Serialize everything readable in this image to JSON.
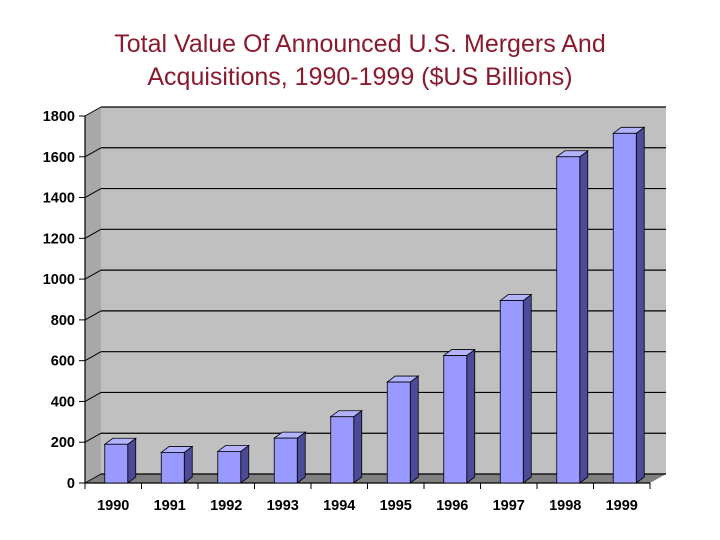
{
  "chart_data": {
    "type": "bar",
    "title_lines": [
      "Total Value Of Announced U.S. Mergers And",
      "Acquisitions, 1990-1999 ($US Billions)"
    ],
    "categories": [
      "1990",
      "1991",
      "1992",
      "1993",
      "1994",
      "1995",
      "1996",
      "1997",
      "1998",
      "1999"
    ],
    "values": [
      190,
      150,
      155,
      220,
      325,
      495,
      625,
      895,
      1600,
      1715
    ],
    "xlabel": "",
    "ylabel": "",
    "ylim": [
      0,
      1800
    ],
    "yticks": [
      "0",
      "200",
      "400",
      "600",
      "800",
      "1000",
      "1200",
      "1400",
      "1600",
      "1800"
    ],
    "grid": true,
    "legend": "none",
    "style": "3d-column",
    "colors": {
      "bar_front": "#9999ff",
      "bar_top": "#b3b3ff",
      "bar_side": "#4b4b99",
      "wall": "#c0c0c0",
      "floor": "#808080",
      "title": "#8b1a2f"
    }
  }
}
